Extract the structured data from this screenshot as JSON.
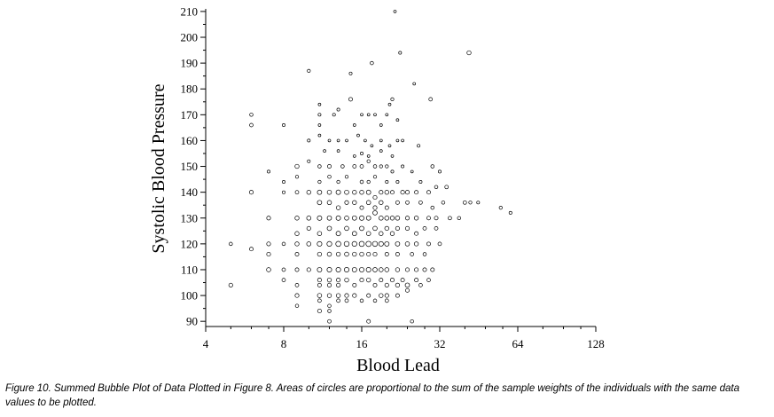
{
  "chart_data": {
    "type": "scatter",
    "subtype": "bubble",
    "x_scale": "log2",
    "xlabel": "Blood Lead",
    "ylabel": "Systolic Blood Pressure",
    "xlim": [
      4,
      128
    ],
    "ylim": [
      88,
      211
    ],
    "x_ticks": [
      4,
      8,
      16,
      32,
      64,
      128
    ],
    "y_ticks": [
      90,
      100,
      110,
      120,
      130,
      140,
      150,
      160,
      170,
      180,
      190,
      200,
      210
    ],
    "grid": false,
    "points": [
      [
        21.5,
        210,
        0.5
      ],
      [
        22.5,
        194,
        0.6
      ],
      [
        41.5,
        194,
        1.2
      ],
      [
        17.5,
        190,
        0.8
      ],
      [
        25.5,
        182,
        0.5
      ],
      [
        10,
        187,
        0.7
      ],
      [
        14.5,
        186,
        0.6
      ],
      [
        14.5,
        176,
        1.0
      ],
      [
        21,
        176,
        0.7
      ],
      [
        29.5,
        176,
        0.9
      ],
      [
        13,
        172,
        0.6
      ],
      [
        11,
        174,
        0.5
      ],
      [
        20.5,
        174,
        0.5
      ],
      [
        6,
        170,
        0.8
      ],
      [
        11,
        170,
        0.6
      ],
      [
        12.5,
        170,
        0.6
      ],
      [
        16,
        170,
        0.5
      ],
      [
        17,
        170,
        0.5
      ],
      [
        18,
        170,
        0.5
      ],
      [
        20,
        170,
        0.5
      ],
      [
        22,
        168,
        0.5
      ],
      [
        6,
        166,
        0.9
      ],
      [
        8,
        166,
        0.6
      ],
      [
        11,
        166,
        0.5
      ],
      [
        15,
        166,
        0.5
      ],
      [
        19,
        166,
        0.5
      ],
      [
        10,
        160,
        0.6
      ],
      [
        11,
        162,
        0.5
      ],
      [
        12,
        160,
        0.5
      ],
      [
        13,
        160,
        0.5
      ],
      [
        14,
        160,
        0.5
      ],
      [
        15.5,
        162,
        0.5
      ],
      [
        16.5,
        160,
        0.5
      ],
      [
        17.5,
        158,
        0.5
      ],
      [
        19,
        160,
        0.5
      ],
      [
        20.5,
        158,
        0.5
      ],
      [
        22,
        160,
        0.5
      ],
      [
        23,
        160,
        0.5
      ],
      [
        26.5,
        158,
        0.6
      ],
      [
        11.5,
        156,
        0.5
      ],
      [
        13,
        156,
        0.5
      ],
      [
        15,
        154,
        0.5
      ],
      [
        16,
        155,
        0.6
      ],
      [
        17,
        154,
        0.5
      ],
      [
        19,
        156,
        0.5
      ],
      [
        21,
        154,
        0.5
      ],
      [
        7,
        148,
        0.6
      ],
      [
        9,
        150,
        1.2
      ],
      [
        10,
        152,
        0.6
      ],
      [
        11,
        150,
        0.8
      ],
      [
        12,
        150,
        1.0
      ],
      [
        13.5,
        150,
        0.8
      ],
      [
        15,
        150,
        0.9
      ],
      [
        16,
        150,
        0.9
      ],
      [
        17,
        152,
        0.7
      ],
      [
        18,
        150,
        0.8
      ],
      [
        19,
        150,
        0.7
      ],
      [
        20,
        150,
        0.7
      ],
      [
        21,
        148,
        0.6
      ],
      [
        23,
        150,
        0.6
      ],
      [
        25,
        148,
        0.5
      ],
      [
        30,
        150,
        0.8
      ],
      [
        32,
        148,
        0.6
      ],
      [
        8,
        144,
        0.6
      ],
      [
        9,
        146,
        0.7
      ],
      [
        11,
        144,
        0.7
      ],
      [
        12,
        146,
        0.8
      ],
      [
        13,
        144,
        0.7
      ],
      [
        14,
        146,
        0.7
      ],
      [
        16,
        144,
        0.8
      ],
      [
        17,
        144,
        0.7
      ],
      [
        18,
        146,
        0.7
      ],
      [
        20,
        144,
        0.6
      ],
      [
        22,
        144,
        0.6
      ],
      [
        27,
        144,
        0.6
      ],
      [
        6,
        140,
        1.1
      ],
      [
        8,
        140,
        0.6
      ],
      [
        9,
        140,
        0.9
      ],
      [
        10,
        140,
        1.2
      ],
      [
        11,
        140,
        1.4
      ],
      [
        12,
        140,
        1.3
      ],
      [
        13,
        140,
        1.5
      ],
      [
        14,
        140,
        1.3
      ],
      [
        15,
        140,
        1.2
      ],
      [
        16,
        140,
        1.2
      ],
      [
        17,
        140,
        1.4
      ],
      [
        18,
        138,
        1.1
      ],
      [
        19,
        140,
        1.1
      ],
      [
        20,
        140,
        1.2
      ],
      [
        21,
        140,
        1.0
      ],
      [
        23,
        140,
        1.1
      ],
      [
        24,
        140,
        1.1
      ],
      [
        26,
        140,
        1.0
      ],
      [
        29,
        140,
        1.0
      ],
      [
        31,
        142,
        0.8
      ],
      [
        34,
        142,
        0.9
      ],
      [
        11,
        136,
        1.4
      ],
      [
        12,
        136,
        1.3
      ],
      [
        13,
        134,
        1.2
      ],
      [
        14,
        136,
        1.1
      ],
      [
        15,
        136,
        1.2
      ],
      [
        16,
        134,
        1.0
      ],
      [
        17,
        136,
        1.3
      ],
      [
        18,
        134,
        1.1
      ],
      [
        19,
        136,
        1.2
      ],
      [
        20,
        134,
        1.0
      ],
      [
        22,
        136,
        1.0
      ],
      [
        24,
        136,
        0.9
      ],
      [
        27,
        136,
        0.9
      ],
      [
        30,
        134,
        0.8
      ],
      [
        33,
        136,
        0.8
      ],
      [
        40,
        136,
        0.9
      ],
      [
        42,
        136,
        0.7
      ],
      [
        45,
        136,
        0.6
      ],
      [
        55,
        134,
        0.7
      ],
      [
        60,
        132,
        0.6
      ],
      [
        7,
        130,
        1.1
      ],
      [
        9,
        130,
        1.2
      ],
      [
        10,
        130,
        1.3
      ],
      [
        11,
        130,
        1.5
      ],
      [
        12,
        130,
        1.4
      ],
      [
        13,
        130,
        1.5
      ],
      [
        14,
        130,
        1.3
      ],
      [
        15,
        130,
        1.4
      ],
      [
        16,
        130,
        1.5
      ],
      [
        17,
        130,
        1.4
      ],
      [
        18,
        132,
        1.4
      ],
      [
        19,
        130,
        1.3
      ],
      [
        20,
        130,
        1.3
      ],
      [
        21,
        130,
        1.2
      ],
      [
        22,
        130,
        1.3
      ],
      [
        24,
        130,
        1.1
      ],
      [
        26,
        130,
        1.2
      ],
      [
        29,
        130,
        1.0
      ],
      [
        31,
        130,
        1.0
      ],
      [
        35,
        130,
        0.9
      ],
      [
        38,
        130,
        0.8
      ],
      [
        9,
        124,
        1.2
      ],
      [
        10,
        126,
        1.1
      ],
      [
        11,
        124,
        1.3
      ],
      [
        12,
        126,
        1.4
      ],
      [
        13,
        124,
        1.5
      ],
      [
        14,
        126,
        1.3
      ],
      [
        15,
        124,
        1.4
      ],
      [
        16,
        126,
        1.4
      ],
      [
        17,
        124,
        1.3
      ],
      [
        18,
        126,
        1.3
      ],
      [
        19,
        124,
        1.2
      ],
      [
        20,
        126,
        1.2
      ],
      [
        21,
        124,
        1.2
      ],
      [
        22,
        126,
        1.1
      ],
      [
        24,
        126,
        1.1
      ],
      [
        26,
        124,
        1.0
      ],
      [
        28,
        126,
        0.9
      ],
      [
        31,
        126,
        0.9
      ],
      [
        5,
        120,
        0.8
      ],
      [
        7,
        120,
        1.1
      ],
      [
        8,
        120,
        0.8
      ],
      [
        9,
        120,
        1.2
      ],
      [
        10,
        120,
        1.3
      ],
      [
        11,
        120,
        1.6
      ],
      [
        12,
        120,
        1.7
      ],
      [
        13,
        120,
        1.9
      ],
      [
        14,
        120,
        1.8
      ],
      [
        15,
        120,
        1.7
      ],
      [
        16,
        120,
        1.9
      ],
      [
        17,
        120,
        2.0
      ],
      [
        18,
        120,
        1.8
      ],
      [
        19,
        120,
        1.6
      ],
      [
        20,
        120,
        1.5
      ],
      [
        22,
        120,
        1.4
      ],
      [
        24,
        120,
        1.3
      ],
      [
        26,
        120,
        1.2
      ],
      [
        29,
        120,
        1.0
      ],
      [
        32,
        120,
        0.9
      ],
      [
        6,
        118,
        1.0
      ],
      [
        7,
        116,
        1.1
      ],
      [
        9,
        116,
        1.0
      ],
      [
        11,
        116,
        1.2
      ],
      [
        12,
        116,
        1.3
      ],
      [
        13,
        116,
        1.2
      ],
      [
        14,
        116,
        1.3
      ],
      [
        15,
        116,
        1.2
      ],
      [
        16,
        116,
        1.2
      ],
      [
        17,
        116,
        1.1
      ],
      [
        18,
        116,
        1.1
      ],
      [
        20,
        116,
        1.0
      ],
      [
        22,
        116,
        1.0
      ],
      [
        25,
        116,
        0.9
      ],
      [
        28,
        116,
        0.8
      ],
      [
        7,
        110,
        1.3
      ],
      [
        8,
        110,
        0.9
      ],
      [
        9,
        110,
        1.0
      ],
      [
        10,
        110,
        1.1
      ],
      [
        11,
        110,
        1.5
      ],
      [
        12,
        110,
        1.6
      ],
      [
        13,
        110,
        1.6
      ],
      [
        14,
        110,
        1.6
      ],
      [
        15,
        110,
        1.5
      ],
      [
        16,
        110,
        1.5
      ],
      [
        17,
        110,
        1.6
      ],
      [
        18,
        110,
        1.4
      ],
      [
        19,
        110,
        1.3
      ],
      [
        20,
        110,
        1.3
      ],
      [
        22,
        110,
        1.2
      ],
      [
        24,
        110,
        1.1
      ],
      [
        26,
        110,
        1.1
      ],
      [
        28,
        110,
        1.0
      ],
      [
        30,
        110,
        1.0
      ],
      [
        8,
        106,
        0.9
      ],
      [
        11,
        106,
        1.1
      ],
      [
        12,
        106,
        1.2
      ],
      [
        13,
        106,
        1.1
      ],
      [
        14,
        106,
        1.2
      ],
      [
        16,
        106,
        1.1
      ],
      [
        17,
        106,
        1.2
      ],
      [
        19,
        106,
        1.0
      ],
      [
        21,
        106,
        1.1
      ],
      [
        23,
        106,
        1.0
      ],
      [
        26,
        106,
        1.0
      ],
      [
        29,
        106,
        0.9
      ],
      [
        5,
        104,
        1.1
      ],
      [
        9,
        104,
        0.9
      ],
      [
        11,
        104,
        1.0
      ],
      [
        12,
        104,
        1.1
      ],
      [
        13,
        104,
        1.1
      ],
      [
        15,
        104,
        1.0
      ],
      [
        18,
        104,
        1.0
      ],
      [
        20,
        104,
        1.1
      ],
      [
        22,
        104,
        1.2
      ],
      [
        24,
        104,
        1.4
      ],
      [
        27,
        104,
        0.9
      ],
      [
        9,
        100,
        1.1
      ],
      [
        11,
        100,
        1.3
      ],
      [
        12,
        100,
        1.2
      ],
      [
        13,
        100,
        1.2
      ],
      [
        14,
        100,
        1.1
      ],
      [
        15,
        100,
        1.1
      ],
      [
        17,
        100,
        1.0
      ],
      [
        19,
        100,
        1.2
      ],
      [
        20,
        100,
        1.1
      ],
      [
        22,
        100,
        1.0
      ],
      [
        24,
        102,
        1.0
      ],
      [
        9,
        96,
        0.8
      ],
      [
        11,
        98,
        0.9
      ],
      [
        12,
        96,
        0.8
      ],
      [
        13,
        98,
        0.9
      ],
      [
        14,
        98,
        0.9
      ],
      [
        16,
        98,
        0.8
      ],
      [
        18,
        98,
        0.8
      ],
      [
        20,
        98,
        0.9
      ],
      [
        11,
        94,
        1.1
      ],
      [
        12,
        94,
        0.8
      ],
      [
        12,
        90,
        0.9
      ],
      [
        17,
        90,
        1.0
      ],
      [
        25,
        90,
        0.8
      ]
    ]
  },
  "caption": "Figure 10.  Summed Bubble Plot of Data Plotted in Figure 8. Areas of circles are proportional to the sum of the sample weights of the individuals with the same data values to be plotted."
}
